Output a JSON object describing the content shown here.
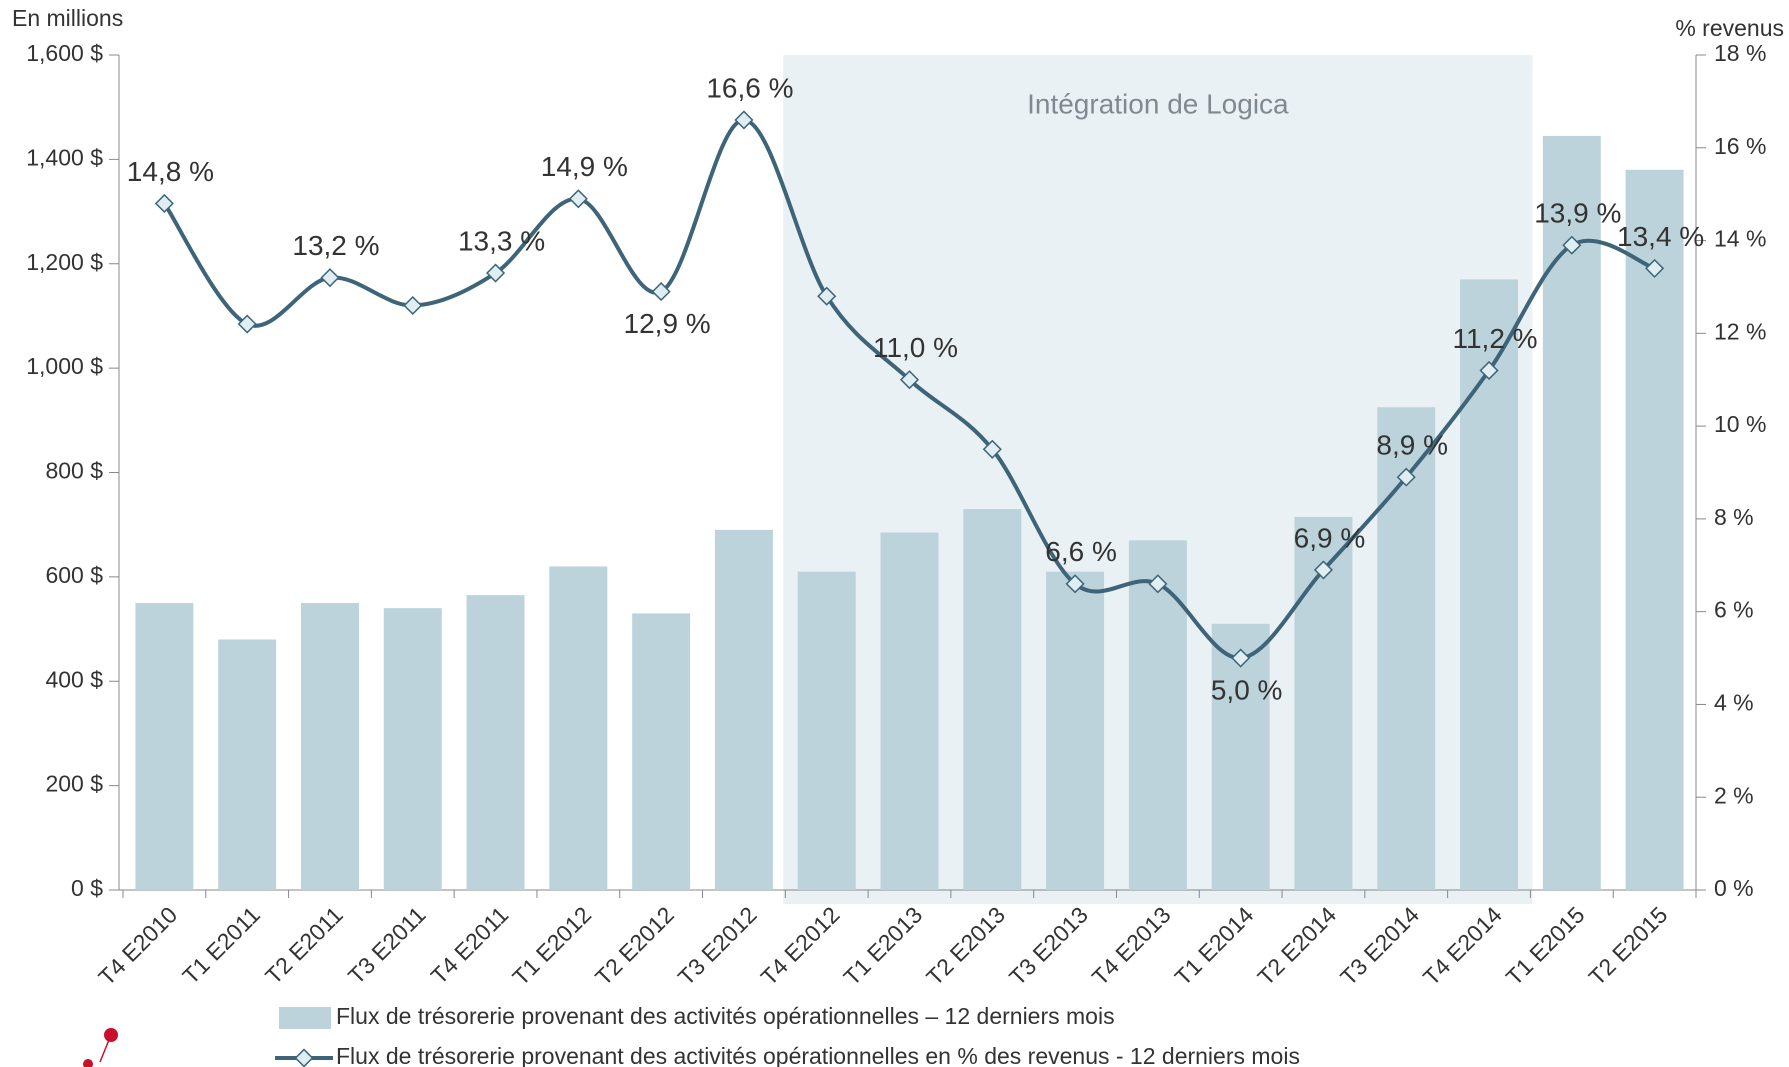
{
  "chart_data": {
    "type": "bar_line",
    "y_label": "En millions",
    "y2_label": "% revenus",
    "annotation": "Intégration de Logica",
    "categories": [
      "T4 E2010",
      "T1 E2011",
      "T2 E2011",
      "T3 E2011",
      "T4 E2011",
      "T1 E2012",
      "T2 E2012",
      "T3 E2012",
      "T4 E2012",
      "T1 E2013",
      "T2 E2013",
      "T3 E2013",
      "T4 E2013",
      "T1 E2014",
      "T2 E2014",
      "T3 E2014",
      "T4 E2014",
      "T1 E2015",
      "T2 E2015"
    ],
    "series": [
      {
        "name": "Flux de trésorerie provenant des activités opérationnelles – 12 derniers mois",
        "type": "bar",
        "color": "#bcd3db",
        "values": [
          550,
          480,
          550,
          540,
          565,
          620,
          530,
          690,
          610,
          685,
          730,
          610,
          670,
          510,
          715,
          925,
          1170,
          1445,
          1380
        ]
      },
      {
        "name": "Flux de trésorerie provenant des activités opérationnelles en % des revenus - 12 derniers mois",
        "type": "line",
        "axis": "y2",
        "color": "#3d6478",
        "values": [
          14.8,
          12.2,
          13.2,
          12.6,
          13.3,
          14.9,
          12.9,
          16.6,
          12.8,
          11.0,
          9.5,
          6.6,
          6.6,
          5.0,
          6.9,
          8.9,
          11.2,
          13.9,
          13.4
        ],
        "value_labels": [
          "14,8 %",
          null,
          "13,2 %",
          null,
          "13,3 %",
          "14,9 %",
          "12,9 %",
          "16,6 %",
          null,
          "11,0 %",
          null,
          "6,6 %",
          null,
          "5,0 %",
          "6,9 %",
          "8,9 %",
          "11,2 %",
          "13,9 %",
          "13,4 %"
        ]
      }
    ],
    "ylim": [
      0,
      1600
    ],
    "yticks": [
      {
        "value": 0,
        "label": "0 $"
      },
      {
        "value": 200,
        "label": "200 $"
      },
      {
        "value": 400,
        "label": "400 $"
      },
      {
        "value": 600,
        "label": "600 $"
      },
      {
        "value": 800,
        "label": "800 $"
      },
      {
        "value": 1000,
        "label": "1,000 $"
      },
      {
        "value": 1200,
        "label": "1,200 $"
      },
      {
        "value": 1400,
        "label": "1,400 $"
      },
      {
        "value": 1600,
        "label": "1,600 $"
      }
    ],
    "y2lim": [
      0,
      18
    ],
    "y2ticks": [
      {
        "value": 0,
        "label": "0 %"
      },
      {
        "value": 2,
        "label": "2 %"
      },
      {
        "value": 4,
        "label": "4 %"
      },
      {
        "value": 6,
        "label": "6 %"
      },
      {
        "value": 8,
        "label": "8 %"
      },
      {
        "value": 10,
        "label": "10 %"
      },
      {
        "value": 12,
        "label": "12 %"
      },
      {
        "value": 14,
        "label": "14 %"
      },
      {
        "value": 16,
        "label": "16 %"
      },
      {
        "value": 18,
        "label": "18 %"
      }
    ],
    "grid": false
  }
}
